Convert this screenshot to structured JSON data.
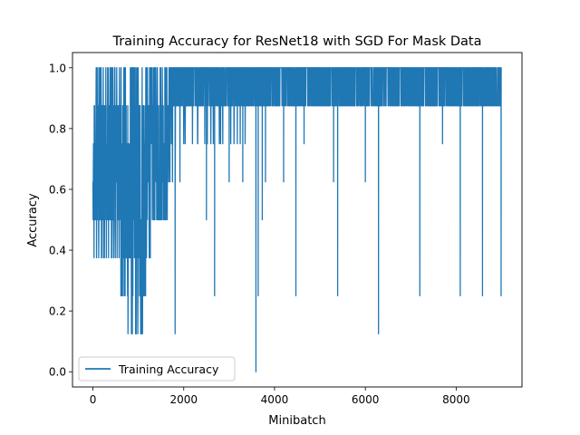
{
  "chart_data": {
    "type": "line",
    "title": "Training Accuracy for ResNet18 with SGD For Mask Data",
    "xlabel": "Minibatch",
    "ylabel": "Accuracy",
    "xlim": [
      -450,
      9450
    ],
    "ylim": [
      -0.05,
      1.05
    ],
    "xticks": [
      0,
      2000,
      4000,
      6000,
      8000
    ],
    "xtick_labels": [
      "0",
      "2000",
      "4000",
      "6000",
      "8000"
    ],
    "yticks": [
      0.0,
      0.2,
      0.4,
      0.6,
      0.8,
      1.0
    ],
    "ytick_labels": [
      "0.0",
      "0.2",
      "0.4",
      "0.6",
      "0.8",
      "1.0"
    ],
    "grid": false,
    "legend_position": "lower-left",
    "series": [
      {
        "name": "Training Accuracy",
        "color": "#1f77b4",
        "envelope_points": [
          {
            "x": 0,
            "ymin": 0.25,
            "ymax": 0.75
          },
          {
            "x": 50,
            "ymin": 0.375,
            "ymax": 1.0
          },
          {
            "x": 150,
            "ymin": 0.375,
            "ymax": 1.0
          },
          {
            "x": 300,
            "ymin": 0.375,
            "ymax": 1.0
          },
          {
            "x": 500,
            "ymin": 0.375,
            "ymax": 1.0
          },
          {
            "x": 700,
            "ymin": 0.125,
            "ymax": 1.0
          },
          {
            "x": 900,
            "ymin": 0.125,
            "ymax": 1.0
          },
          {
            "x": 1100,
            "ymin": 0.125,
            "ymax": 1.0
          },
          {
            "x": 1300,
            "ymin": 0.375,
            "ymax": 1.0
          },
          {
            "x": 1450,
            "ymin": 0.5,
            "ymax": 1.0
          },
          {
            "x": 1650,
            "ymin": 0.5,
            "ymax": 1.0
          },
          {
            "x": 1700,
            "ymin": 0.625,
            "ymax": 1.0
          },
          {
            "x": 2200,
            "ymin": 0.625,
            "ymax": 1.0
          },
          {
            "x": 2800,
            "ymin": 0.75,
            "ymax": 1.0
          },
          {
            "x": 3400,
            "ymin": 0.75,
            "ymax": 1.0
          },
          {
            "x": 3450,
            "ymin": 0.875,
            "ymax": 1.0
          },
          {
            "x": 9000,
            "ymin": 0.875,
            "ymax": 1.0
          }
        ],
        "dips": [
          {
            "x": 1810,
            "y": 0.125
          },
          {
            "x": 2500,
            "y": 0.5
          },
          {
            "x": 2680,
            "y": 0.25
          },
          {
            "x": 3000,
            "y": 0.625
          },
          {
            "x": 3300,
            "y": 0.625
          },
          {
            "x": 3590,
            "y": 0.0
          },
          {
            "x": 3640,
            "y": 0.25
          },
          {
            "x": 3730,
            "y": 0.5
          },
          {
            "x": 3800,
            "y": 0.625
          },
          {
            "x": 4200,
            "y": 0.625
          },
          {
            "x": 4470,
            "y": 0.25
          },
          {
            "x": 4650,
            "y": 0.75
          },
          {
            "x": 5300,
            "y": 0.625
          },
          {
            "x": 5390,
            "y": 0.25
          },
          {
            "x": 6000,
            "y": 0.625
          },
          {
            "x": 6290,
            "y": 0.125
          },
          {
            "x": 7200,
            "y": 0.25
          },
          {
            "x": 7700,
            "y": 0.75
          },
          {
            "x": 8090,
            "y": 0.25
          },
          {
            "x": 8580,
            "y": 0.25
          },
          {
            "x": 8990,
            "y": 0.25
          }
        ]
      }
    ]
  }
}
